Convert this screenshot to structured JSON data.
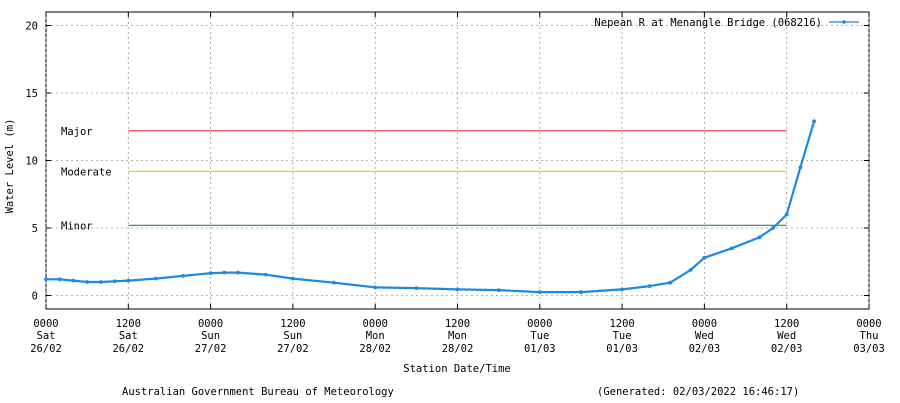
{
  "chart_data": {
    "type": "line",
    "title": "",
    "xlabel": "Station Date/Time",
    "ylabel": "Water Level (m)",
    "ylim": [
      -1,
      21
    ],
    "xlim": [
      "2022-02-26 00:00",
      "2022-03-03 00:00"
    ],
    "grid": true,
    "legend_position": "top-right",
    "y_ticks": [
      0,
      5,
      10,
      15,
      20
    ],
    "x_ticks": [
      {
        "time": "2022-02-26 00:00",
        "l1": "0000",
        "l2": "Sat",
        "l3": "26/02"
      },
      {
        "time": "2022-02-26 12:00",
        "l1": "1200",
        "l2": "Sat",
        "l3": "26/02"
      },
      {
        "time": "2022-02-27 00:00",
        "l1": "0000",
        "l2": "Sun",
        "l3": "27/02"
      },
      {
        "time": "2022-02-27 12:00",
        "l1": "1200",
        "l2": "Sun",
        "l3": "27/02"
      },
      {
        "time": "2022-02-28 00:00",
        "l1": "0000",
        "l2": "Mon",
        "l3": "28/02"
      },
      {
        "time": "2022-02-28 12:00",
        "l1": "1200",
        "l2": "Mon",
        "l3": "28/02"
      },
      {
        "time": "2022-03-01 00:00",
        "l1": "0000",
        "l2": "Tue",
        "l3": "01/03"
      },
      {
        "time": "2022-03-01 12:00",
        "l1": "1200",
        "l2": "Tue",
        "l3": "01/03"
      },
      {
        "time": "2022-03-02 00:00",
        "l1": "0000",
        "l2": "Wed",
        "l3": "02/03"
      },
      {
        "time": "2022-03-02 12:00",
        "l1": "1200",
        "l2": "Wed",
        "l3": "02/03"
      },
      {
        "time": "2022-03-03 00:00",
        "l1": "0000",
        "l2": "Thu",
        "l3": "03/03"
      }
    ],
    "thresholds": [
      {
        "label": "Major",
        "value": 12.2,
        "color": "#e23030",
        "start": "2022-02-26 12:00",
        "end": "2022-03-02 12:00"
      },
      {
        "label": "Moderate",
        "value": 9.2,
        "color": "#f2c200",
        "start": "2022-02-26 12:00",
        "end": "2022-03-02 12:00"
      },
      {
        "label": "Minor",
        "value": 5.2,
        "color": "#2e8b57",
        "start": "2022-02-26 12:00",
        "end": "2022-03-02 12:00"
      }
    ],
    "series": [
      {
        "name": "Nepean R at Menangle Bridge (068216)",
        "color": "#1e88e5",
        "points": [
          {
            "x": "2022-02-26 00:00",
            "y": 1.2
          },
          {
            "x": "2022-02-26 02:00",
            "y": 1.2
          },
          {
            "x": "2022-02-26 04:00",
            "y": 1.1
          },
          {
            "x": "2022-02-26 06:00",
            "y": 1.0
          },
          {
            "x": "2022-02-26 08:00",
            "y": 1.0
          },
          {
            "x": "2022-02-26 10:00",
            "y": 1.05
          },
          {
            "x": "2022-02-26 12:00",
            "y": 1.1
          },
          {
            "x": "2022-02-26 16:00",
            "y": 1.25
          },
          {
            "x": "2022-02-26 20:00",
            "y": 1.45
          },
          {
            "x": "2022-02-27 00:00",
            "y": 1.65
          },
          {
            "x": "2022-02-27 02:00",
            "y": 1.7
          },
          {
            "x": "2022-02-27 04:00",
            "y": 1.7
          },
          {
            "x": "2022-02-27 08:00",
            "y": 1.55
          },
          {
            "x": "2022-02-27 12:00",
            "y": 1.25
          },
          {
            "x": "2022-02-27 18:00",
            "y": 0.95
          },
          {
            "x": "2022-02-28 00:00",
            "y": 0.6
          },
          {
            "x": "2022-02-28 06:00",
            "y": 0.55
          },
          {
            "x": "2022-02-28 12:00",
            "y": 0.45
          },
          {
            "x": "2022-02-28 18:00",
            "y": 0.4
          },
          {
            "x": "2022-03-01 00:00",
            "y": 0.25
          },
          {
            "x": "2022-03-01 06:00",
            "y": 0.25
          },
          {
            "x": "2022-03-01 12:00",
            "y": 0.45
          },
          {
            "x": "2022-03-01 16:00",
            "y": 0.7
          },
          {
            "x": "2022-03-01 19:00",
            "y": 0.95
          },
          {
            "x": "2022-03-01 22:00",
            "y": 1.9
          },
          {
            "x": "2022-03-02 00:00",
            "y": 2.8
          },
          {
            "x": "2022-03-02 04:00",
            "y": 3.5
          },
          {
            "x": "2022-03-02 08:00",
            "y": 4.3
          },
          {
            "x": "2022-03-02 10:00",
            "y": 5.0
          },
          {
            "x": "2022-03-02 12:00",
            "y": 6.0
          },
          {
            "x": "2022-03-02 14:00",
            "y": 9.5
          },
          {
            "x": "2022-03-02 16:00",
            "y": 12.9
          }
        ]
      }
    ]
  },
  "footer": {
    "left": "Australian Government Bureau of Meteorology",
    "right": "(Generated: 02/03/2022 16:46:17)"
  }
}
